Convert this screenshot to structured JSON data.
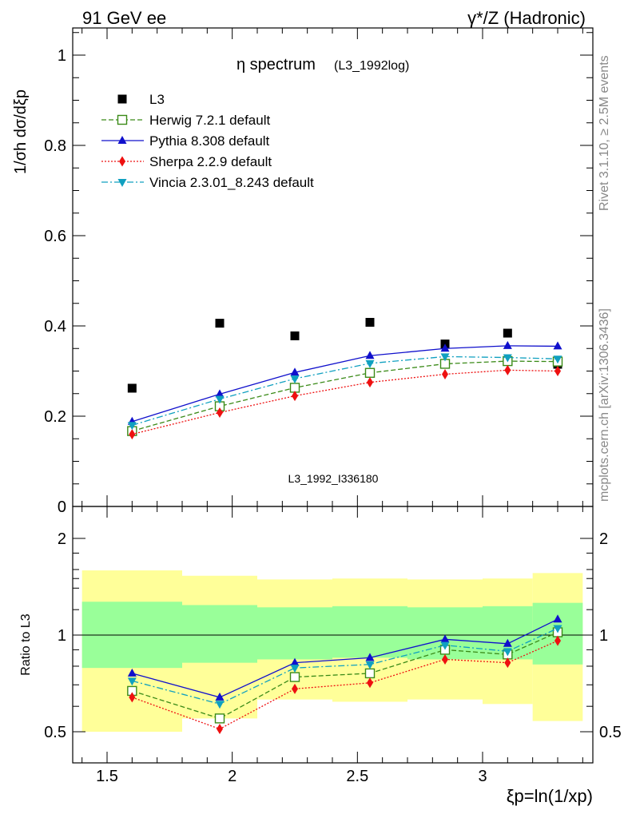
{
  "header": {
    "left_label": "91 GeV ee",
    "right_label": "γ*/Z (Hadronic)"
  },
  "side": {
    "rivet": "Rivet 3.1.10, ≥ 2.5M events",
    "mcplots": "mcplots.cern.ch [arXiv:1306.3436]"
  },
  "main_plot": {
    "title_main": "η spectrum",
    "title_sub": "(L3_1992log)",
    "watermark": "L3_1992_I336180",
    "ylabel": "1/σh dσ/dξp",
    "yticks": [
      "0",
      "0.2",
      "0.4",
      "0.6",
      "0.8",
      "1"
    ]
  },
  "ratio_plot": {
    "ylabel": "Ratio to L3",
    "yticks": [
      "0.5",
      "1",
      "2"
    ],
    "xticks": [
      "1.5",
      "2",
      "2.5",
      "3"
    ],
    "xlabel": "ξp=ln(1/xp)"
  },
  "legend": [
    {
      "label": "L3",
      "color": "#000000",
      "marker": "square-filled"
    },
    {
      "label": "Herwig 7.2.1 default",
      "color": "#3a8a17",
      "marker": "square-open"
    },
    {
      "label": "Pythia 8.308 default",
      "color": "#1010cc",
      "marker": "triangle-up"
    },
    {
      "label": "Sherpa 2.2.9 default",
      "color": "#ee1010",
      "marker": "diamond"
    },
    {
      "label": "Vincia 2.3.01_8.243 default",
      "color": "#10a0c0",
      "marker": "triangle-down"
    }
  ],
  "chart_data": [
    {
      "type": "scatter",
      "title": "η spectrum (L3_1992log)",
      "xlabel": "ξp=ln(1/xp)",
      "ylabel": "1/σh dσ/dξp",
      "xlim": [
        1.4,
        3.45
      ],
      "ylim": [
        0,
        1.06
      ],
      "x": [
        1.6,
        1.95,
        2.25,
        2.55,
        2.85,
        3.1,
        3.3
      ],
      "series": [
        {
          "name": "L3",
          "values": [
            0.262,
            0.406,
            0.378,
            0.408,
            0.36,
            0.384,
            0.315
          ]
        },
        {
          "name": "Herwig 7.2.1 default",
          "values": [
            0.167,
            0.222,
            0.263,
            0.296,
            0.316,
            0.322,
            0.321
          ]
        },
        {
          "name": "Pythia 8.308 default",
          "values": [
            0.188,
            0.249,
            0.297,
            0.334,
            0.35,
            0.356,
            0.355
          ]
        },
        {
          "name": "Sherpa 2.2.9 default",
          "values": [
            0.16,
            0.208,
            0.245,
            0.275,
            0.293,
            0.302,
            0.3
          ]
        },
        {
          "name": "Vincia 2.3.01_8.243 default",
          "values": [
            0.18,
            0.238,
            0.283,
            0.317,
            0.332,
            0.33,
            0.327
          ]
        }
      ]
    },
    {
      "type": "line",
      "ylabel": "Ratio to L3",
      "xlabel": "ξp=ln(1/xp)",
      "xlim": [
        1.4,
        3.45
      ],
      "ylim": [
        0.4,
        2.4
      ],
      "y_scale": "log",
      "x": [
        1.6,
        1.95,
        2.25,
        2.55,
        2.85,
        3.1,
        3.3
      ],
      "bins": [
        {
          "lo": 1.4,
          "hi": 1.8,
          "inner": [
            0.79,
            1.27
          ],
          "outer": [
            0.5,
            1.59
          ]
        },
        {
          "lo": 1.8,
          "hi": 2.1,
          "inner": [
            0.82,
            1.24
          ],
          "outer": [
            0.55,
            1.53
          ]
        },
        {
          "lo": 2.1,
          "hi": 2.4,
          "inner": [
            0.84,
            1.22
          ],
          "outer": [
            0.63,
            1.49
          ]
        },
        {
          "lo": 2.4,
          "hi": 2.7,
          "inner": [
            0.85,
            1.23
          ],
          "outer": [
            0.62,
            1.5
          ]
        },
        {
          "lo": 2.7,
          "hi": 3.0,
          "inner": [
            0.84,
            1.22
          ],
          "outer": [
            0.63,
            1.49
          ]
        },
        {
          "lo": 3.0,
          "hi": 3.2,
          "inner": [
            0.84,
            1.23
          ],
          "outer": [
            0.61,
            1.5
          ]
        },
        {
          "lo": 3.2,
          "hi": 3.4,
          "inner": [
            0.81,
            1.26
          ],
          "outer": [
            0.54,
            1.56
          ]
        }
      ],
      "series": [
        {
          "name": "Herwig 7.2.1 default",
          "values": [
            0.67,
            0.55,
            0.74,
            0.76,
            0.9,
            0.87,
            1.02
          ]
        },
        {
          "name": "Pythia 8.308 default",
          "values": [
            0.76,
            0.64,
            0.82,
            0.85,
            0.97,
            0.94,
            1.12
          ]
        },
        {
          "name": "Sherpa 2.2.9 default",
          "values": [
            0.64,
            0.51,
            0.68,
            0.71,
            0.84,
            0.82,
            0.96
          ]
        },
        {
          "name": "Vincia 2.3.01_8.243 default",
          "values": [
            0.72,
            0.61,
            0.79,
            0.81,
            0.93,
            0.89,
            1.05
          ]
        }
      ]
    }
  ]
}
